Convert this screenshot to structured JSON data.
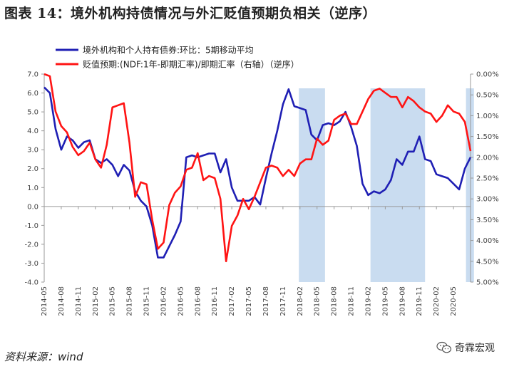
{
  "chart_data": {
    "type": "line",
    "title": "图表 14：境外机构持债情况与外汇贬值预期负相关（逆序）",
    "source": "资料来源：wind",
    "watermark": "奇霖宏观",
    "colors": {
      "series1": "#1f1fb4",
      "series2": "#ff1414",
      "shade": "#c9dcf0",
      "axis": "#999999"
    },
    "series": [
      {
        "name": "境外机构和个人持有债券:环比：5期移动平均",
        "axis": "left",
        "color": "#1f1fb4",
        "values": [
          6.3,
          6.0,
          4.1,
          3.0,
          3.7,
          3.5,
          3.1,
          3.4,
          3.5,
          2.5,
          2.3,
          2.5,
          2.2,
          1.6,
          2.2,
          1.9,
          0.8,
          0.3,
          0.0,
          -1.0,
          -2.7,
          -2.7,
          -2.1,
          -1.5,
          -0.8,
          2.6,
          2.7,
          2.6,
          2.7,
          2.8,
          2.8,
          1.8,
          2.5,
          1.0,
          0.3,
          0.3,
          0.3,
          0.5,
          0.1,
          1.5,
          2.8,
          4.0,
          5.4,
          6.2,
          5.3,
          5.2,
          5.1,
          3.8,
          3.5,
          4.3,
          4.4,
          4.3,
          4.5,
          5.0,
          4.2,
          3.2,
          1.2,
          0.6,
          0.8,
          0.7,
          0.9,
          1.4,
          2.5,
          2.2,
          2.9,
          2.9,
          3.7,
          2.5,
          2.4,
          1.7,
          1.6,
          1.5,
          1.2,
          0.9,
          2.0,
          2.6
        ]
      },
      {
        "name": "贬值预期:(NDF:1年-即期汇率)/即期汇率（右轴）（逆序）",
        "axis": "right",
        "color": "#ff1414",
        "values": [
          0.0,
          0.05,
          0.9,
          1.25,
          1.4,
          1.75,
          1.95,
          1.85,
          1.65,
          2.05,
          2.25,
          1.7,
          0.8,
          0.75,
          0.7,
          1.65,
          2.95,
          2.6,
          2.65,
          3.5,
          4.2,
          4.05,
          3.15,
          2.85,
          2.7,
          2.3,
          2.25,
          1.9,
          2.55,
          2.45,
          2.5,
          3.0,
          4.5,
          3.65,
          3.4,
          3.0,
          3.25,
          2.95,
          2.6,
          2.25,
          2.2,
          2.25,
          2.45,
          2.3,
          2.45,
          2.15,
          2.05,
          2.05,
          1.55,
          1.7,
          1.6,
          1.1,
          1.0,
          0.95,
          1.2,
          1.2,
          0.9,
          0.6,
          0.4,
          0.35,
          0.45,
          0.55,
          0.55,
          0.8,
          0.55,
          0.65,
          0.8,
          0.9,
          0.95,
          1.15,
          1.0,
          0.75,
          0.9,
          0.95,
          1.15,
          1.85
        ]
      }
    ],
    "x_ticks": [
      "2014-05",
      "2014-08",
      "2014-11",
      "2015-02",
      "2015-05",
      "2015-08",
      "2015-11",
      "2016-02",
      "2016-05",
      "2016-08",
      "2016-11",
      "2017-02",
      "2017-05",
      "2017-08",
      "2017-11",
      "2018-02",
      "2018-05",
      "2018-08",
      "2018-11",
      "2019-02",
      "2019-05",
      "2019-08",
      "2019-11",
      "2020-02",
      "2020-05"
    ],
    "y_left": {
      "min": -4.0,
      "max": 7.0,
      "step": 1.0,
      "labels": [
        "7.0",
        "6.0",
        "5.0",
        "4.0",
        "3.0",
        "2.0",
        "1.0",
        "0.0",
        "-1.0",
        "-2.0",
        "-3.0",
        "-4.0"
      ]
    },
    "y_right": {
      "min": 0.0,
      "max": 5.0,
      "step": 0.5,
      "inverted": true,
      "labels": [
        "0.00%",
        "0.50%",
        "1.00%",
        "1.50%",
        "2.00%",
        "2.50%",
        "3.00%",
        "3.50%",
        "4.00%",
        "4.50%",
        "5.00%"
      ]
    },
    "shaded_ranges": [
      {
        "from": 44.8,
        "to": 49.4
      },
      {
        "from": 57.4,
        "to": 67.0
      },
      {
        "from": 74.2,
        "to": 75.6
      }
    ],
    "legend_position": "top-left"
  }
}
